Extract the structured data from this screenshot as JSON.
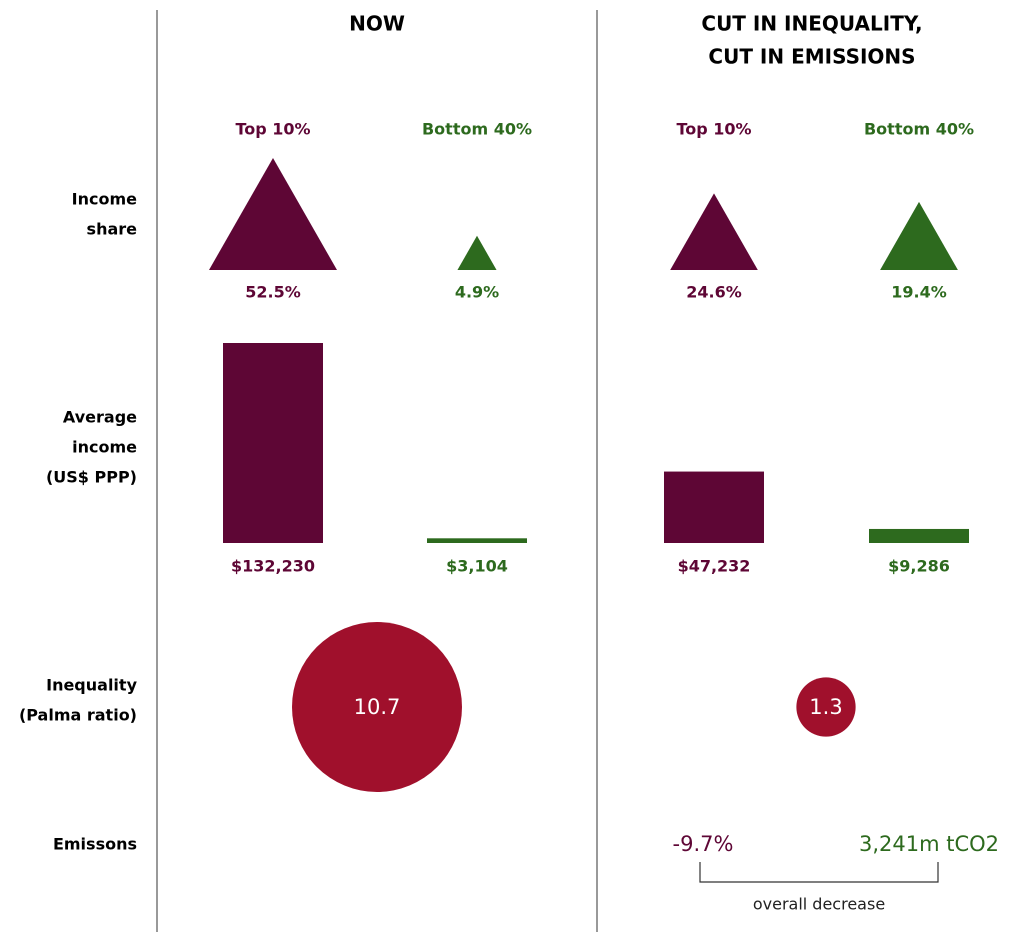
{
  "headers": [
    [
      "NOW"
    ],
    [
      "CUT IN INEQUALITY,",
      "CUT IN EMISSIONS"
    ]
  ],
  "groups": [
    {
      "name": "Top 10%",
      "color": "#5e0635"
    },
    {
      "name": "Bottom 40%",
      "color": "#2d6a1e"
    }
  ],
  "row_labels": [
    [
      "Income",
      "share"
    ],
    [
      "Average",
      "income",
      "(US$ PPP)"
    ],
    [
      "Inequality",
      "(Palma ratio)"
    ],
    [
      "Emissons"
    ]
  ],
  "scenarios": [
    {
      "income_share": {
        "values": [
          52.5,
          4.9
        ],
        "value_labels": [
          "52.5%",
          "4.9%"
        ]
      },
      "average_income": {
        "values": [
          132230,
          3104
        ],
        "value_labels": [
          "$132,230",
          "$3,104"
        ]
      },
      "palma_ratio": {
        "value": 10.7,
        "color": "#a0102c"
      }
    },
    {
      "income_share": {
        "values": [
          24.6,
          19.4
        ],
        "value_labels": [
          "24.6%",
          "19.4%"
        ]
      },
      "average_income": {
        "values": [
          47232,
          9286
        ],
        "value_labels": [
          "$47,232",
          "$9,286"
        ]
      },
      "palma_ratio": {
        "value": 1.3,
        "color": "#a0102c"
      },
      "emissions": {
        "change": "-9.7%",
        "total": "3,241m tCO2",
        "note": "overall decrease"
      }
    }
  ]
}
